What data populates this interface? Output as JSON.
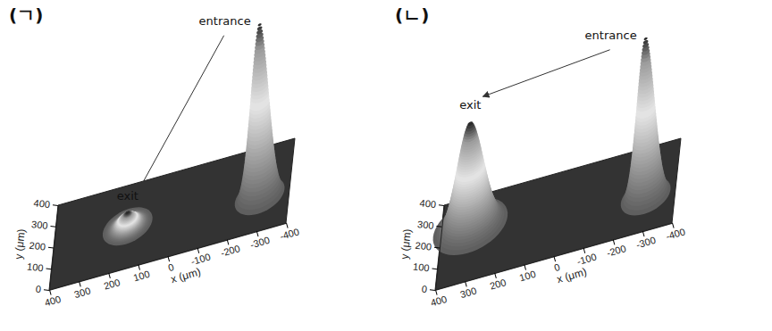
{
  "chart_data": [
    {
      "type": "surface",
      "title": "(ㄱ)",
      "x_label": "x (μm)",
      "y_label": "y (μm)",
      "xlim": [
        -400,
        400
      ],
      "xticks": [
        -400,
        -300,
        -200,
        -100,
        0,
        100,
        200,
        300,
        400
      ],
      "ylim": [
        0,
        400
      ],
      "yticks": [
        0,
        100,
        200,
        300,
        400
      ],
      "zlim": [
        0,
        1
      ],
      "peaks": [
        {
          "name": "entrance",
          "x": -300,
          "y": 150,
          "z": 1.0,
          "sigma": 30
        },
        {
          "name": "exit",
          "x": 150,
          "y": 200,
          "z": 0.08,
          "sigma": 30
        }
      ]
    },
    {
      "type": "surface",
      "title": "(ㄴ)",
      "x_label": "x (μm)",
      "y_label": "y (μm)",
      "xlim": [
        -400,
        400
      ],
      "xticks": [
        -400,
        -300,
        -200,
        -100,
        0,
        100,
        200,
        300,
        400
      ],
      "ylim": [
        0,
        400
      ],
      "yticks": [
        0,
        100,
        200,
        300,
        400
      ],
      "zlim": [
        0,
        1
      ],
      "peaks": [
        {
          "name": "entrance",
          "x": -300,
          "y": 150,
          "z": 0.92,
          "sigma": 30
        },
        {
          "name": "exit",
          "x": 300,
          "y": 250,
          "z": 0.6,
          "sigma": 45
        }
      ]
    }
  ]
}
